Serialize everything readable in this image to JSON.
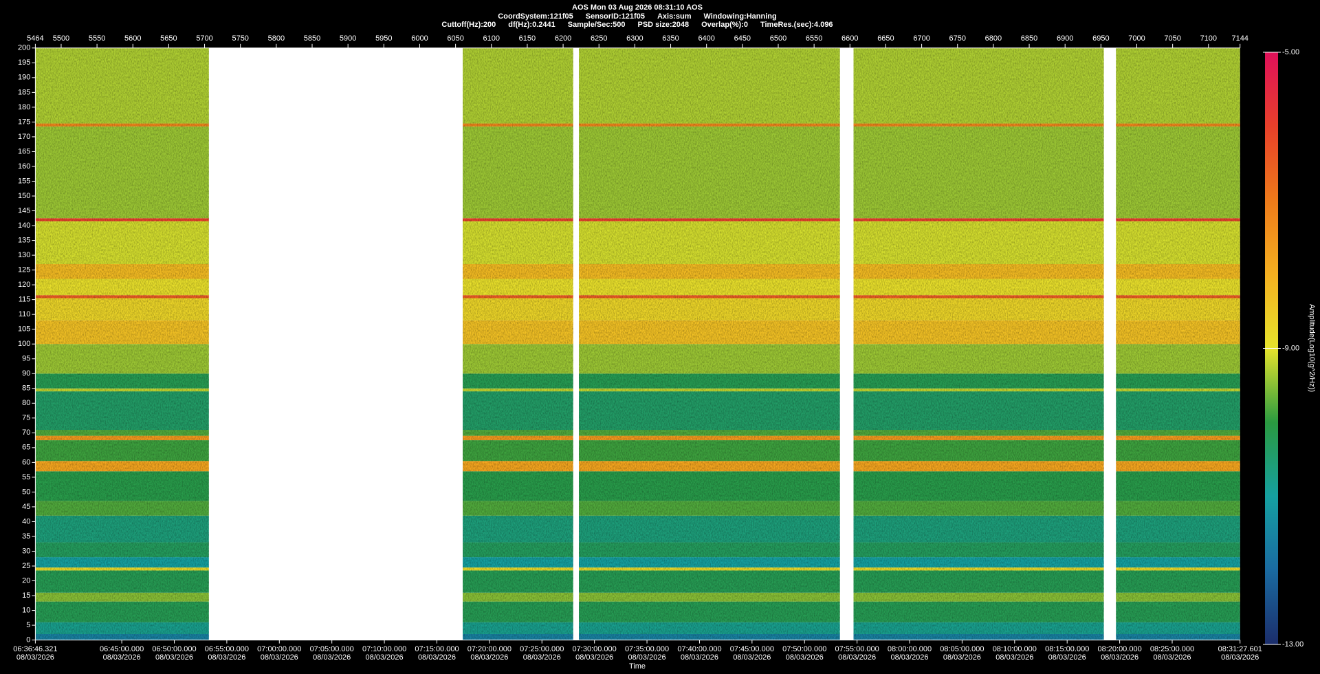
{
  "chart_data": {
    "type": "spectrogram",
    "title": "AOS  Mon 03 Aug 2026 08:31:10  AOS",
    "info": [
      [
        "CoordSystem:121f05",
        "SensorID:121f05",
        "Axis:sum",
        "Windowing:Hanning"
      ],
      [
        "Cuttoff(Hz):200",
        "df(Hz):0.2441",
        "Sample/Sec:500",
        "PSD size:2048",
        "Overlap(%):0",
        "TimeRes.(sec):4.096"
      ]
    ],
    "xlim": [
      5464,
      7144
    ],
    "xticks": [
      5464,
      5500,
      5550,
      5600,
      5650,
      5700,
      5750,
      5800,
      5850,
      5900,
      5950,
      6000,
      6050,
      6100,
      6150,
      6200,
      6250,
      6300,
      6350,
      6400,
      6450,
      6500,
      6550,
      6600,
      6650,
      6700,
      6750,
      6800,
      6850,
      6900,
      6950,
      7000,
      7050,
      7100,
      7144
    ],
    "x2label": "Time",
    "x2lim": [
      "06:36:46.321",
      "08:31:27.601"
    ],
    "x2ticks": [
      "06:36:46.321",
      "06:45:00.000",
      "06:50:00.000",
      "06:55:00.000",
      "07:00:00.000",
      "07:05:00.000",
      "07:10:00.000",
      "07:15:00.000",
      "07:20:00.000",
      "07:25:00.000",
      "07:30:00.000",
      "07:35:00.000",
      "07:40:00.000",
      "07:45:00.000",
      "07:50:00.000",
      "07:55:00.000",
      "08:00:00.000",
      "08:05:00.000",
      "08:10:00.000",
      "08:15:00.000",
      "08:20:00.000",
      "08:25:00.000",
      "08:31:27.601"
    ],
    "x2tick_date": "08/03/2026",
    "ylim": [
      0,
      200
    ],
    "yticks": [
      0,
      5,
      10,
      15,
      20,
      25,
      30,
      35,
      40,
      45,
      50,
      55,
      60,
      65,
      70,
      75,
      80,
      85,
      90,
      95,
      100,
      105,
      110,
      115,
      120,
      125,
      130,
      135,
      140,
      145,
      150,
      155,
      160,
      165,
      170,
      175,
      180,
      185,
      190,
      195,
      200
    ],
    "segments": [
      [
        5464,
        5706
      ],
      [
        6060,
        6214
      ],
      [
        6222,
        6586
      ],
      [
        6605,
        6954
      ],
      [
        6971,
        7144
      ]
    ],
    "bands": [
      {
        "y0": 0,
        "y1": 2,
        "value": -11.6
      },
      {
        "y0": 2,
        "y1": 6,
        "value": -10.8
      },
      {
        "y0": 6,
        "y1": 13,
        "value": -10.2
      },
      {
        "y0": 13,
        "y1": 16,
        "value": -9.5
      },
      {
        "y0": 16,
        "y1": 23.5,
        "value": -10.2
      },
      {
        "y0": 23.5,
        "y1": 24.5,
        "value": -8.8
      },
      {
        "y0": 24.5,
        "y1": 28,
        "value": -11
      },
      {
        "y0": 28,
        "y1": 33,
        "value": -10.3
      },
      {
        "y0": 33,
        "y1": 42,
        "value": -10.6
      },
      {
        "y0": 42,
        "y1": 47,
        "value": -9.8
      },
      {
        "y0": 47,
        "y1": 57,
        "value": -10.1
      },
      {
        "y0": 57,
        "y1": 60.5,
        "value": -7.8
      },
      {
        "y0": 60.5,
        "y1": 67.5,
        "value": -9.9
      },
      {
        "y0": 67.5,
        "y1": 69,
        "value": -7.6
      },
      {
        "y0": 69,
        "y1": 71,
        "value": -9.8
      },
      {
        "y0": 71,
        "y1": 84,
        "value": -10.4
      },
      {
        "y0": 84,
        "y1": 85,
        "value": -9.2
      },
      {
        "y0": 85,
        "y1": 90,
        "value": -10.2
      },
      {
        "y0": 90,
        "y1": 100,
        "value": -9.4
      },
      {
        "y0": 100,
        "y1": 108,
        "value": -8.3
      },
      {
        "y0": 108,
        "y1": 115.5,
        "value": -8.7
      },
      {
        "y0": 115.5,
        "y1": 116.5,
        "value": -6.5
      },
      {
        "y0": 116.5,
        "y1": 122,
        "value": -8.9
      },
      {
        "y0": 122,
        "y1": 127,
        "value": -8.2
      },
      {
        "y0": 127,
        "y1": 141.5,
        "value": -9.1
      },
      {
        "y0": 141.5,
        "y1": 142.5,
        "value": -6
      },
      {
        "y0": 142.5,
        "y1": 173.5,
        "value": -9.4
      },
      {
        "y0": 173.5,
        "y1": 174.5,
        "value": -7.2
      },
      {
        "y0": 174.5,
        "y1": 200,
        "value": -9.3
      }
    ],
    "clim": [
      -13,
      -5
    ],
    "colormap": [
      "#1b2d6b",
      "#1a6aa0",
      "#15a0a0",
      "#2a9a40",
      "#e6e42c",
      "#f5b020",
      "#ee7a1a",
      "#e8402a",
      "#e0105a"
    ],
    "cticks": [
      {
        "value": -5,
        "label": "-5.00"
      },
      {
        "value": -9,
        "label": "-9.00"
      },
      {
        "value": -13,
        "label": "-13.00"
      }
    ],
    "clabel": "Amplitude(Log10(g^2/Hz))"
  }
}
